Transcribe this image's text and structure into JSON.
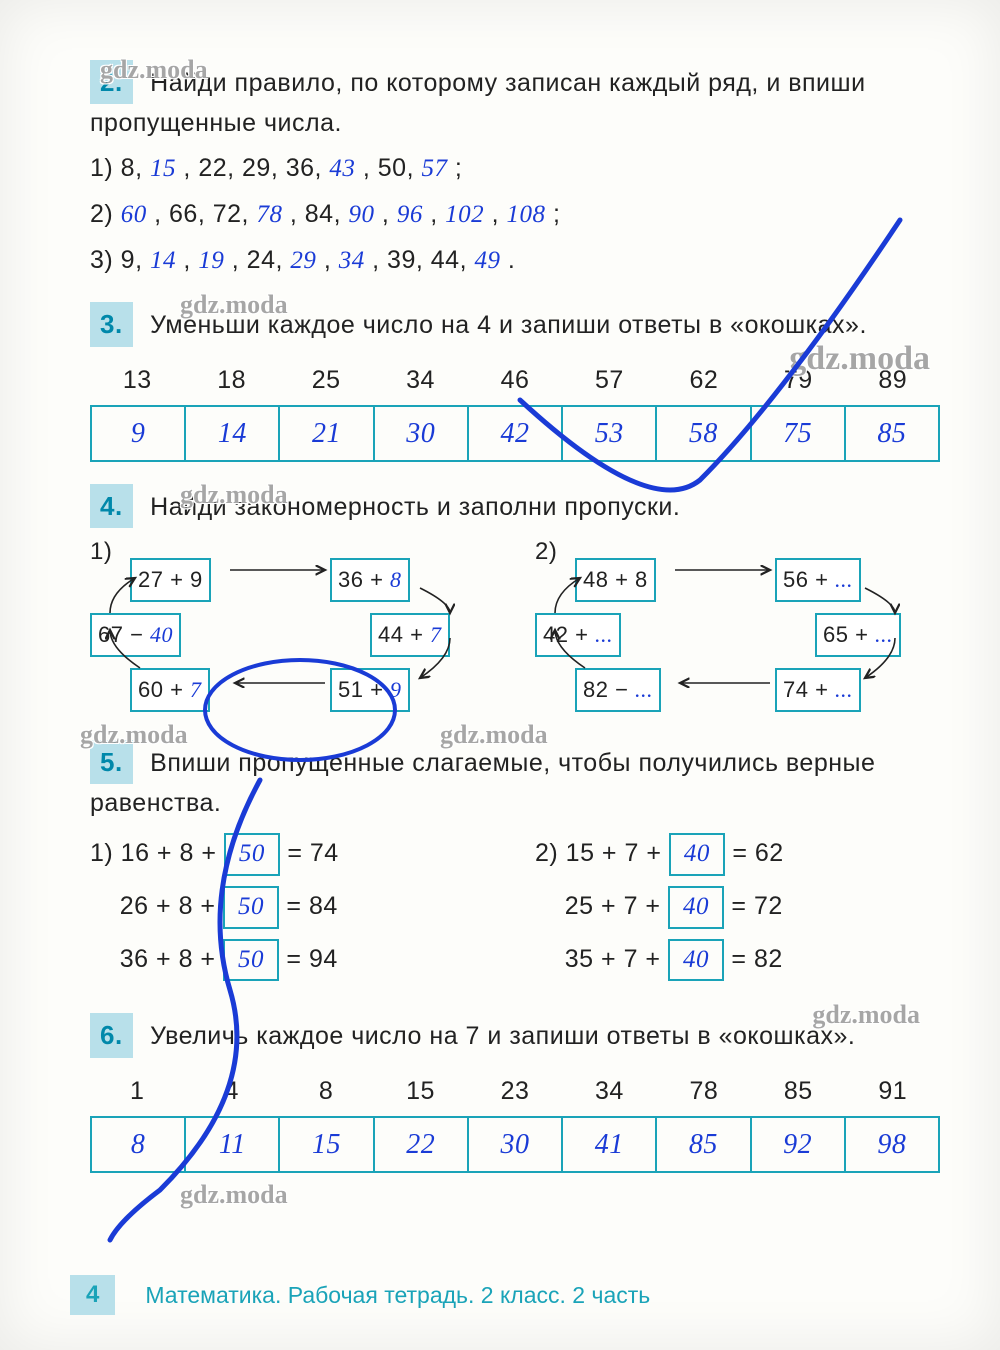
{
  "watermark": "gdz.moda",
  "page_number": "4",
  "footer_text": "Математика. Рабочая тетрадь. 2 класс. 2 часть",
  "colors": {
    "accent": "#1aa3b8",
    "accent_bg": "#b8e0ea",
    "handwriting": "#1a3bd6",
    "text": "#222222",
    "page_bg": "#fdfdfa"
  },
  "problems": {
    "p2": {
      "num": "2.",
      "text": "Найди правило, по которому записан каждый ряд, и впиши пропущенные числа.",
      "rows": [
        {
          "label": "1)",
          "items": [
            "8,",
            {
              "h": "15"
            },
            ", 22, 29, 36,",
            {
              "h": "43"
            },
            ", 50,",
            {
              "h": "57"
            },
            ";"
          ]
        },
        {
          "label": "2)",
          "items": [
            {
              "h": "60"
            },
            ", 66, 72,",
            {
              "h": "78"
            },
            ", 84,",
            {
              "h": "90"
            },
            ",",
            {
              "h": "96"
            },
            ",",
            {
              "h": "102"
            },
            ",",
            {
              "h": "108"
            },
            ";"
          ]
        },
        {
          "label": "3)",
          "items": [
            "9,",
            {
              "h": "14"
            },
            ",",
            {
              "h": "19"
            },
            ", 24,",
            {
              "h": "29"
            },
            ",",
            {
              "h": "34"
            },
            ", 39, 44,",
            {
              "h": "49"
            },
            "."
          ]
        }
      ]
    },
    "p3": {
      "num": "3.",
      "text": "Уменьши каждое число на 4 и запиши ответы в «окошках».",
      "top": [
        "13",
        "18",
        "25",
        "34",
        "46",
        "57",
        "62",
        "79",
        "89"
      ],
      "bottom": [
        "9",
        "14",
        "21",
        "30",
        "42",
        "53",
        "58",
        "75",
        "85"
      ]
    },
    "p4": {
      "num": "4.",
      "text": "Найди закономерность и заполни пропуски.",
      "chain1": {
        "label": "1)",
        "b1": {
          "p": "27 + 9",
          "h": ""
        },
        "b2": {
          "p": "36 +",
          "h": "8"
        },
        "b3": {
          "p": "44 +",
          "h": "7"
        },
        "b4": {
          "p": "51 +",
          "h": "9"
        },
        "b5": {
          "p": "60 +",
          "h": "7"
        },
        "b6": {
          "p": "67 −",
          "h": "40"
        }
      },
      "chain2": {
        "label": "2)",
        "b1": {
          "p": "48 + 8",
          "h": ""
        },
        "b2": {
          "p": "56 +",
          "h": "..."
        },
        "b3": {
          "p": "65 +",
          "h": "..."
        },
        "b4": {
          "p": "74 +",
          "h": "..."
        },
        "b5": {
          "p": "82 −",
          "h": "..."
        },
        "b6": {
          "p": "42 +",
          "h": "..."
        }
      }
    },
    "p5": {
      "num": "5.",
      "text": "Впиши пропущенные слагаемые, чтобы получились верные равенства.",
      "left": {
        "label": "1)",
        "rows": [
          {
            "a": "16 + 8 +",
            "h": "50",
            "b": "= 74"
          },
          {
            "a": "26 + 8 +",
            "h": "50",
            "b": "= 84"
          },
          {
            "a": "36 + 8 +",
            "h": "50",
            "b": "= 94"
          }
        ]
      },
      "right": {
        "label": "2)",
        "rows": [
          {
            "a": "15 + 7 +",
            "h": "40",
            "b": "= 62"
          },
          {
            "a": "25 + 7 +",
            "h": "40",
            "b": "= 72"
          },
          {
            "a": "35 + 7 +",
            "h": "40",
            "b": "= 82"
          }
        ]
      }
    },
    "p6": {
      "num": "6.",
      "text": "Увеличь каждое число на 7 и запиши ответы в «окошках».",
      "top": [
        "1",
        "4",
        "8",
        "15",
        "23",
        "34",
        "78",
        "85",
        "91"
      ],
      "bottom": [
        "8",
        "11",
        "15",
        "22",
        "30",
        "41",
        "85",
        "92",
        "98"
      ]
    }
  }
}
